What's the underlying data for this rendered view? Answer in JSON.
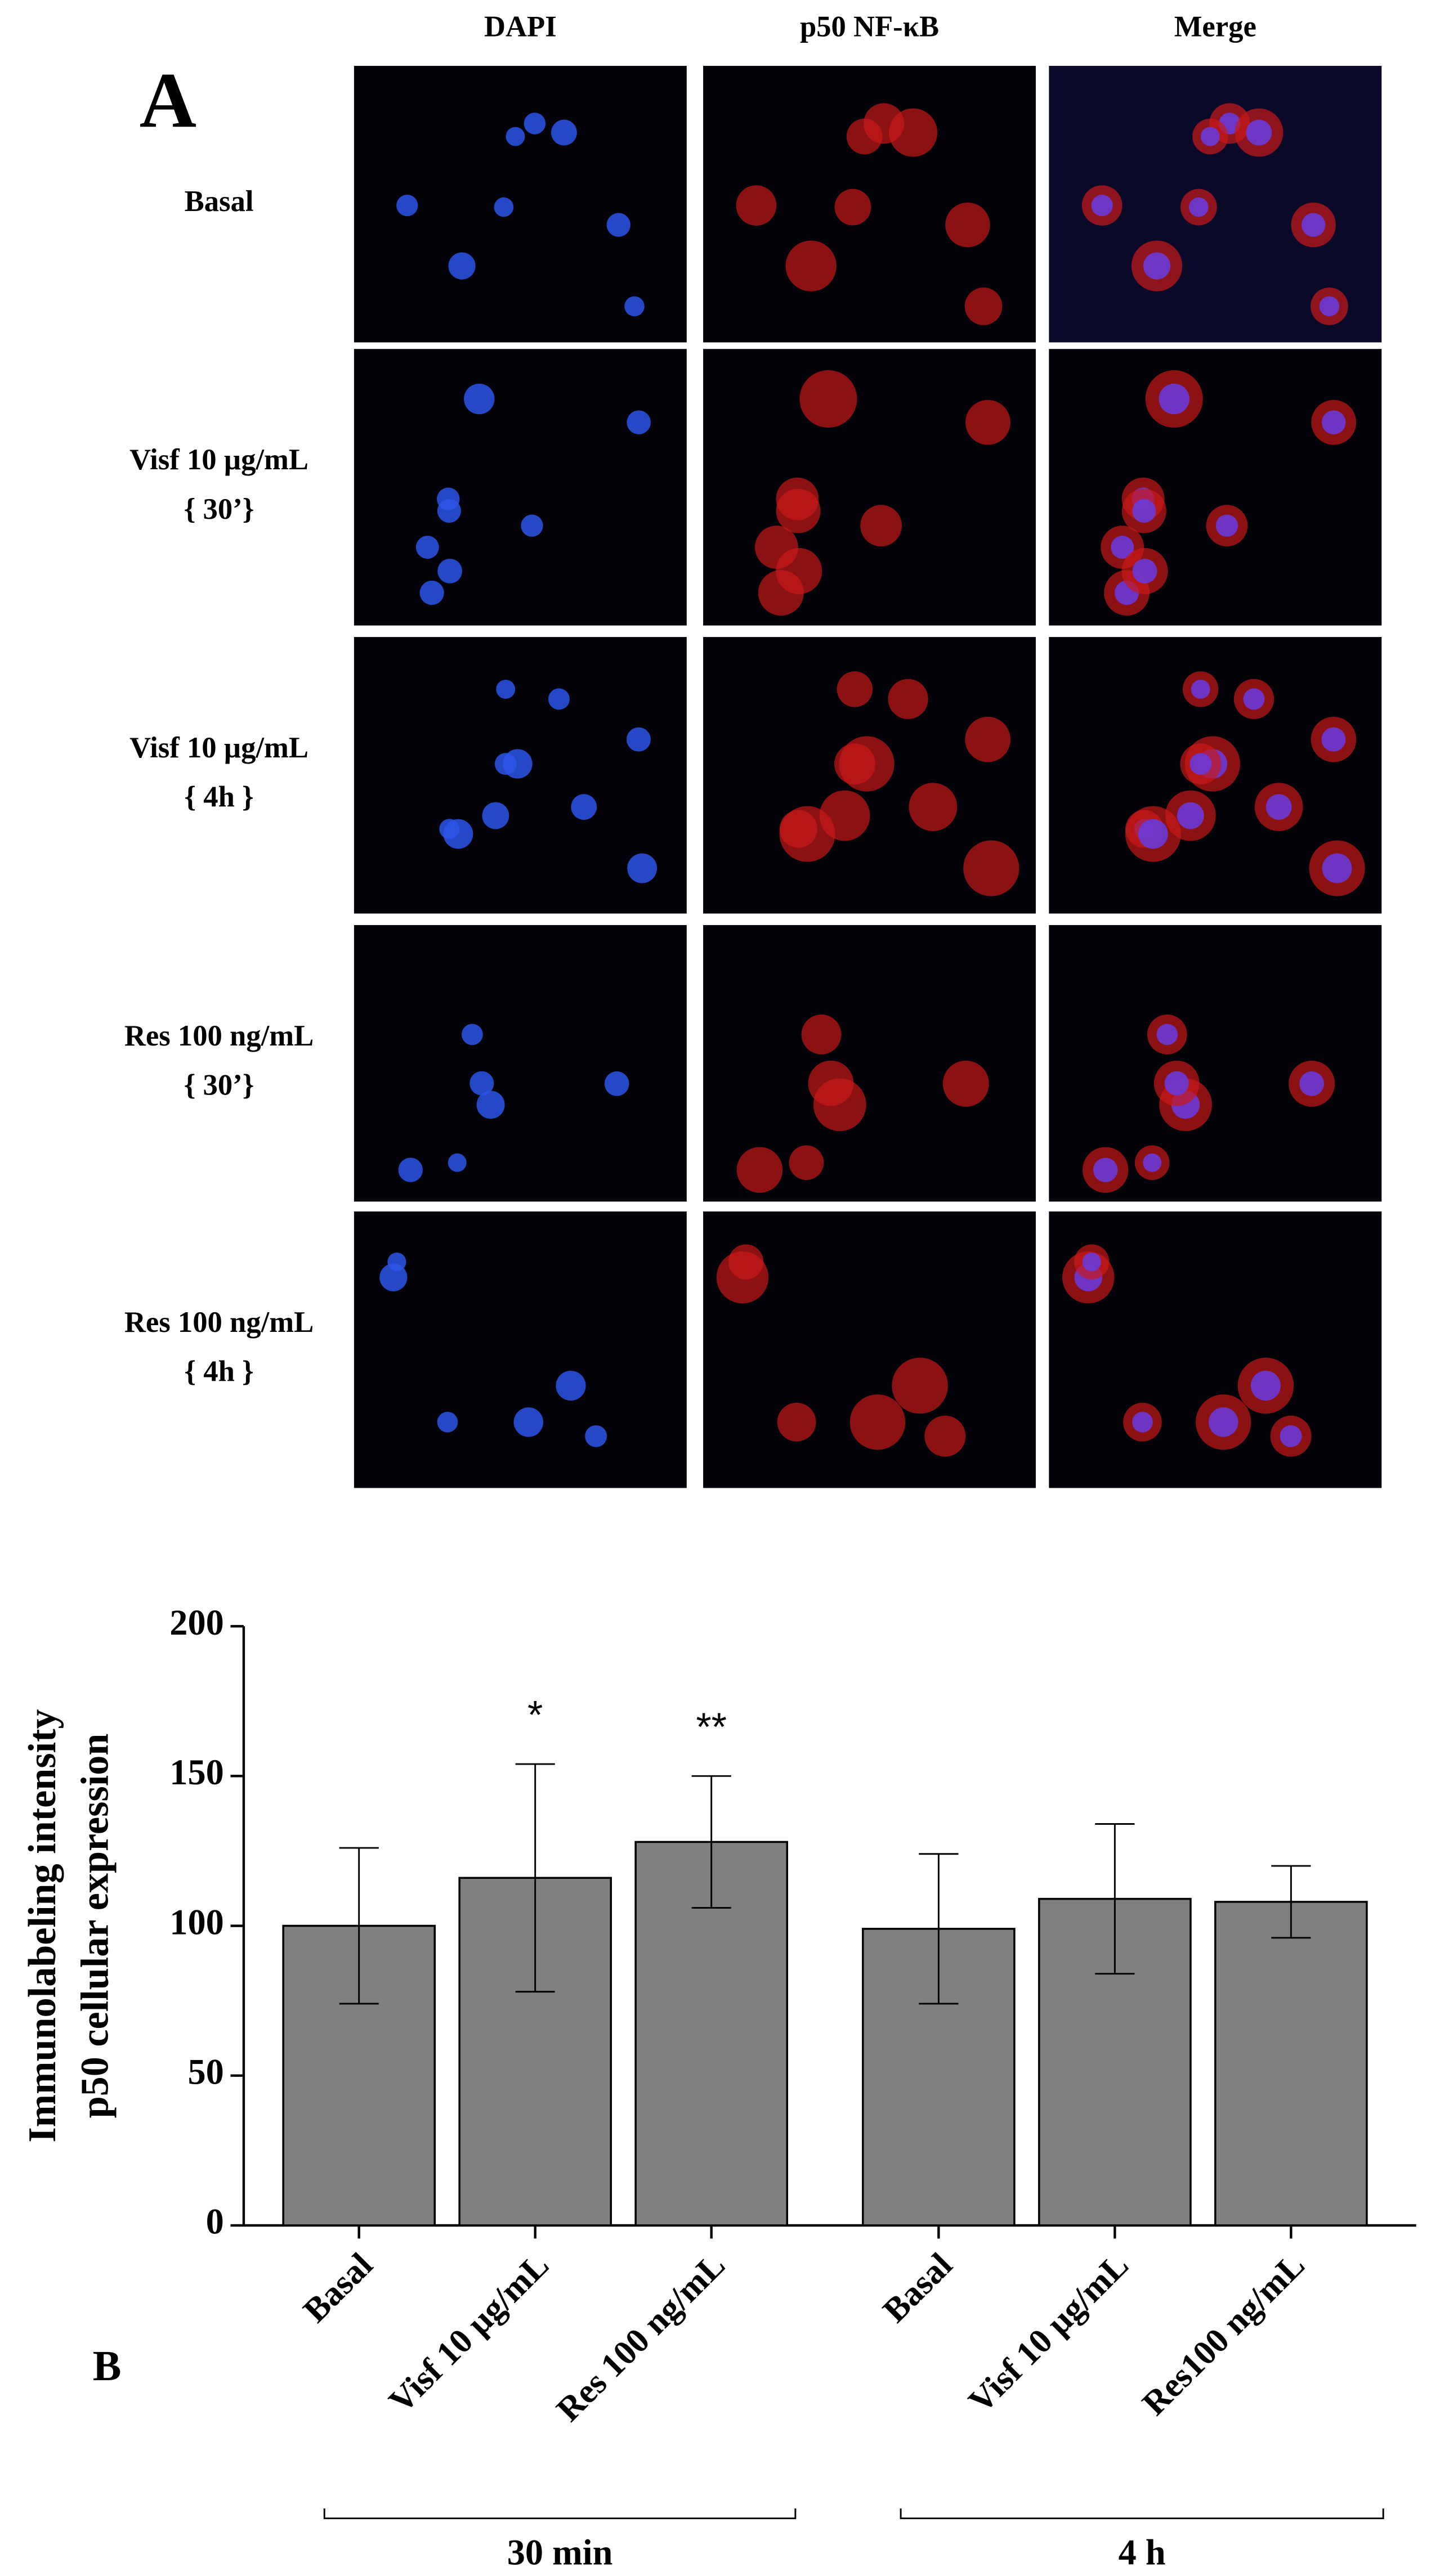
{
  "panel_a": {
    "label": "A",
    "columns": [
      "DAPI",
      "p50 NF-κB",
      "Merge"
    ],
    "rows": [
      [
        "Basal"
      ],
      [
        "Visf 10 µg/mL",
        "{ 30’}"
      ],
      [
        "Visf 10 µg/mL",
        "{ 4h }"
      ],
      [
        "Res 100 ng/mL",
        "{ 30’}"
      ],
      [
        "Res 100 ng/mL",
        "{ 4h }"
      ]
    ]
  },
  "chart_data": {
    "type": "bar",
    "panel_label": "B",
    "y_label": [
      "Immunolabeling intensity",
      "p50 cellular expression"
    ],
    "categories": [
      "Basal",
      "Visf 10 µg/mL",
      "Res 100 ng/mL",
      "Basal",
      "Visf 10 µg/mL",
      "Res100 ng/mL"
    ],
    "values": [
      100,
      116,
      128,
      99,
      109,
      108
    ],
    "errors": [
      26,
      38,
      22,
      25,
      25,
      12
    ],
    "annotations": [
      null,
      "*",
      "**",
      null,
      null,
      null
    ],
    "groups": [
      "30 min",
      "4 h"
    ],
    "color": "#808080",
    "ylim": [
      0,
      200
    ],
    "yticks": [
      0,
      50,
      100,
      150,
      200
    ]
  }
}
